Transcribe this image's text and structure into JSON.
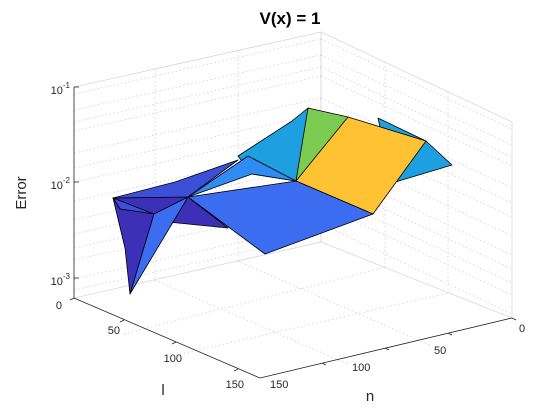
{
  "chart_data": {
    "type": "surface",
    "title": "V(x) = 1",
    "xlabel": "n",
    "ylabel": "l",
    "zlabel": "Error",
    "zscale": "log",
    "grid": true,
    "x_ticks": [
      "0",
      "50",
      "100",
      "150"
    ],
    "y_ticks": [
      "0",
      "50",
      "100",
      "150"
    ],
    "z_ticks": [
      {
        "base": "10",
        "exp": "-3"
      },
      {
        "base": "10",
        "exp": "-2"
      },
      {
        "base": "10",
        "exp": "-1"
      }
    ],
    "surface": {
      "n": [
        16,
        32,
        64,
        128
      ],
      "l": [
        16,
        32,
        64,
        128
      ],
      "error": [
        [
          0.045,
          0.04,
          0.028,
          0.012
        ],
        [
          0.028,
          0.035,
          0.022,
          0.01
        ],
        [
          0.018,
          0.02,
          0.009,
          0.005
        ],
        [
          0.012,
          0.0022,
          0.011,
          0.0075
        ]
      ]
    },
    "face_colors": [
      "#1ea0e0",
      "#7ccb52",
      "#ffc233",
      "#2f8cf5",
      "#3c4fd8",
      "#3c6cf0",
      "#3c2fb8"
    ]
  }
}
